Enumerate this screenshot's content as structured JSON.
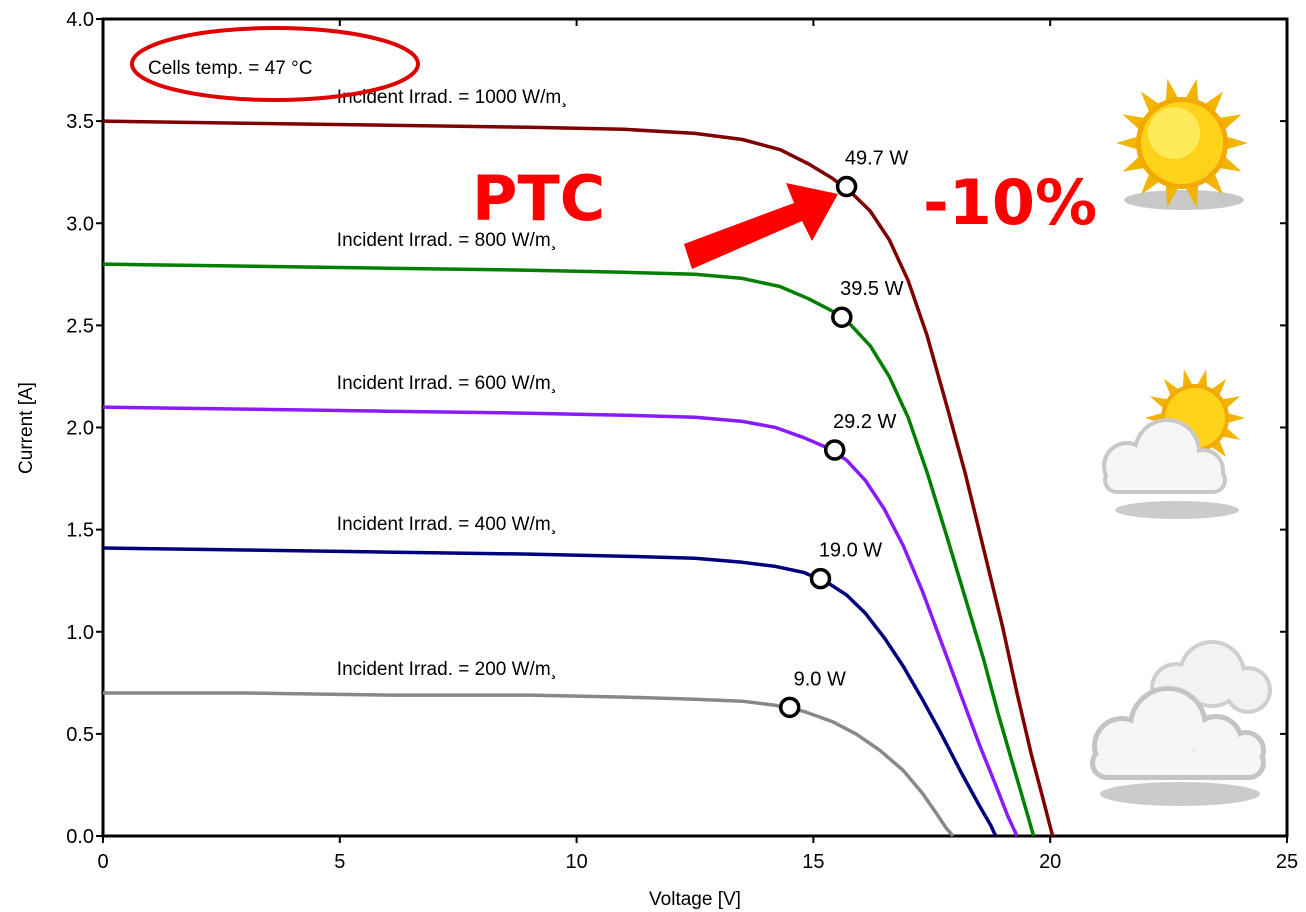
{
  "chart_data": {
    "type": "line",
    "title": "",
    "xlabel": "Voltage [V]",
    "ylabel": "Current [A]",
    "xlim": [
      0,
      25
    ],
    "ylim": [
      0.0,
      4.0
    ],
    "x_ticks": [
      "0",
      "5",
      "10",
      "15",
      "20",
      "25"
    ],
    "y_ticks": [
      "0.0",
      "0.5",
      "1.0",
      "1.5",
      "2.0",
      "2.5",
      "3.0",
      "3.5",
      "4.0"
    ],
    "grid": false,
    "temperature_note": "Cells temp.  = 47 °C",
    "series": [
      {
        "name": "Incident Irrad. = 1000 W/m²",
        "label_text": "Incident Irrad. = 1000 W/m¸",
        "color": "#7f0000",
        "mpp": {
          "v": 15.7,
          "i": 3.18,
          "label": "49.7 W"
        },
        "points": [
          [
            0,
            3.5
          ],
          [
            3,
            3.49
          ],
          [
            6,
            3.48
          ],
          [
            9,
            3.47
          ],
          [
            11,
            3.46
          ],
          [
            12.5,
            3.44
          ],
          [
            13.5,
            3.41
          ],
          [
            14.3,
            3.36
          ],
          [
            14.9,
            3.29
          ],
          [
            15.4,
            3.22
          ],
          [
            15.8,
            3.15
          ],
          [
            16.2,
            3.06
          ],
          [
            16.6,
            2.92
          ],
          [
            17,
            2.72
          ],
          [
            17.4,
            2.45
          ],
          [
            17.8,
            2.12
          ],
          [
            18.2,
            1.78
          ],
          [
            18.6,
            1.4
          ],
          [
            19,
            1.02
          ],
          [
            19.3,
            0.7
          ],
          [
            19.6,
            0.4
          ],
          [
            19.85,
            0.18
          ],
          [
            20.05,
            0.0
          ]
        ]
      },
      {
        "name": "Incident Irrad. = 800 W/m²",
        "label_text": "Incident Irrad. = 800 W/m¸",
        "color": "#007f00",
        "mpp": {
          "v": 15.6,
          "i": 2.54,
          "label": "39.5 W"
        },
        "points": [
          [
            0,
            2.8
          ],
          [
            3,
            2.79
          ],
          [
            6,
            2.78
          ],
          [
            9,
            2.77
          ],
          [
            11,
            2.76
          ],
          [
            12.5,
            2.75
          ],
          [
            13.5,
            2.73
          ],
          [
            14.3,
            2.69
          ],
          [
            14.9,
            2.63
          ],
          [
            15.4,
            2.57
          ],
          [
            15.8,
            2.5
          ],
          [
            16.2,
            2.4
          ],
          [
            16.6,
            2.25
          ],
          [
            17,
            2.05
          ],
          [
            17.4,
            1.78
          ],
          [
            17.8,
            1.48
          ],
          [
            18.2,
            1.17
          ],
          [
            18.6,
            0.86
          ],
          [
            18.9,
            0.6
          ],
          [
            19.2,
            0.36
          ],
          [
            19.45,
            0.16
          ],
          [
            19.65,
            0.0
          ]
        ]
      },
      {
        "name": "Incident Irrad. = 600 W/m²",
        "label_text": "Incident Irrad. = 600 W/m¸",
        "color": "#8b1aff",
        "mpp": {
          "v": 15.45,
          "i": 1.89,
          "label": "29.2 W"
        },
        "points": [
          [
            0,
            2.1
          ],
          [
            3,
            2.09
          ],
          [
            6,
            2.08
          ],
          [
            9,
            2.07
          ],
          [
            11,
            2.06
          ],
          [
            12.5,
            2.05
          ],
          [
            13.5,
            2.03
          ],
          [
            14.2,
            2.0
          ],
          [
            14.8,
            1.95
          ],
          [
            15.3,
            1.9
          ],
          [
            15.7,
            1.84
          ],
          [
            16.1,
            1.74
          ],
          [
            16.5,
            1.6
          ],
          [
            16.9,
            1.42
          ],
          [
            17.3,
            1.2
          ],
          [
            17.7,
            0.95
          ],
          [
            18.1,
            0.7
          ],
          [
            18.5,
            0.45
          ],
          [
            18.9,
            0.22
          ],
          [
            19.1,
            0.1
          ],
          [
            19.3,
            0.0
          ]
        ]
      },
      {
        "name": "Incident Irrad. = 400 W/m²",
        "label_text": "Incident Irrad. = 400 W/m¸",
        "color": "#00007f",
        "mpp": {
          "v": 15.15,
          "i": 1.26,
          "label": "19.0 W"
        },
        "points": [
          [
            0,
            1.41
          ],
          [
            3,
            1.4
          ],
          [
            6,
            1.39
          ],
          [
            9,
            1.38
          ],
          [
            11,
            1.37
          ],
          [
            12.5,
            1.36
          ],
          [
            13.5,
            1.34
          ],
          [
            14.2,
            1.32
          ],
          [
            14.8,
            1.29
          ],
          [
            15.3,
            1.24
          ],
          [
            15.7,
            1.18
          ],
          [
            16.1,
            1.09
          ],
          [
            16.5,
            0.97
          ],
          [
            16.9,
            0.83
          ],
          [
            17.3,
            0.67
          ],
          [
            17.7,
            0.5
          ],
          [
            18.1,
            0.32
          ],
          [
            18.5,
            0.15
          ],
          [
            18.75,
            0.05
          ],
          [
            18.85,
            0.0
          ]
        ]
      },
      {
        "name": "Incident Irrad. = 200 W/m²",
        "label_text": "Incident Irrad. = 200 W/m¸",
        "color": "#888888",
        "mpp": {
          "v": 14.5,
          "i": 0.63,
          "label": "9.0 W"
        },
        "points": [
          [
            0,
            0.7
          ],
          [
            3,
            0.7
          ],
          [
            6,
            0.69
          ],
          [
            9,
            0.69
          ],
          [
            11,
            0.68
          ],
          [
            12.5,
            0.67
          ],
          [
            13.5,
            0.66
          ],
          [
            14.2,
            0.64
          ],
          [
            14.8,
            0.61
          ],
          [
            15.4,
            0.56
          ],
          [
            15.9,
            0.5
          ],
          [
            16.4,
            0.42
          ],
          [
            16.9,
            0.32
          ],
          [
            17.3,
            0.21
          ],
          [
            17.6,
            0.11
          ],
          [
            17.8,
            0.04
          ],
          [
            17.95,
            0.0
          ]
        ]
      }
    ]
  },
  "annotations": {
    "ptc_text": "PTC",
    "drop_text": "-10%",
    "arrow_color": "#ff0000",
    "circle_color": "#e00000"
  },
  "icons": {
    "full_sun": "sun-icon",
    "partly_cloudy": "partly-cloudy-icon",
    "cloudy": "cloud-icon"
  },
  "colors": {
    "sun_yellow": "#ffd21a",
    "sun_orange": "#f2a900",
    "cloud_fill": "#f4f4f4",
    "cloud_stroke": "#c8c8c8"
  }
}
